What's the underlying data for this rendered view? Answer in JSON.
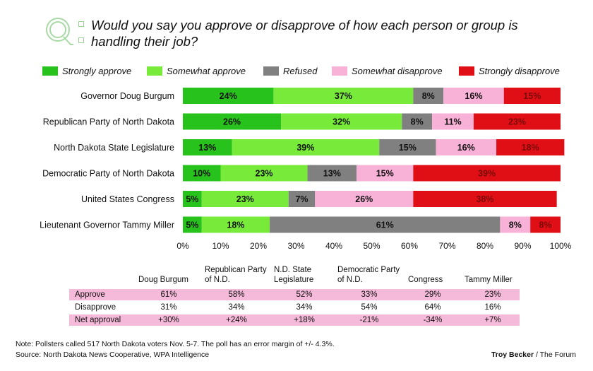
{
  "question": "Would you say you approve or disapprove of how each person or group is handling their job?",
  "chart_data": {
    "type": "bar",
    "orientation": "horizontal-stacked-100",
    "categories": [
      "Governor Doug Burgum",
      "Republican Party of North Dakota",
      "North Dakota State Legislature",
      "Democratic Party of North Dakota",
      "United States Congress",
      "Lieutenant Governor Tammy Miller"
    ],
    "series": [
      {
        "name": "Strongly approve",
        "color": "#27c21c",
        "label_color": "#111111",
        "values": [
          24,
          26,
          13,
          10,
          5,
          5
        ]
      },
      {
        "name": "Somewhat approve",
        "color": "#77ea3a",
        "label_color": "#111111",
        "values": [
          37,
          32,
          39,
          23,
          23,
          18
        ]
      },
      {
        "name": "Refused",
        "color": "#808080",
        "label_color": "#111111",
        "values": [
          8,
          8,
          15,
          13,
          7,
          61
        ]
      },
      {
        "name": "Somewhat disapprove",
        "color": "#f8b2d7",
        "label_color": "#111111",
        "values": [
          16,
          11,
          16,
          15,
          26,
          8
        ]
      },
      {
        "name": "Strongly disapprove",
        "color": "#e00f15",
        "label_color": "#7a0a0a",
        "values": [
          15,
          23,
          18,
          39,
          38,
          8
        ]
      }
    ],
    "xlim": [
      0,
      100
    ],
    "xticks": [
      "0%",
      "10%",
      "20%",
      "30%",
      "40%",
      "50%",
      "60%",
      "70%",
      "80%",
      "90%",
      "100%"
    ]
  },
  "table": {
    "headers": [
      "Doug Burgum",
      "Republican Party of N.D.",
      "N.D. State Legislature",
      "Democratic Party of N.D.",
      "Congress",
      "Tammy Miller"
    ],
    "rows": [
      {
        "label": "Approve",
        "values": [
          "61%",
          "58%",
          "52%",
          "33%",
          "29%",
          "23%"
        ]
      },
      {
        "label": "Disapprove",
        "values": [
          "31%",
          "34%",
          "34%",
          "54%",
          "64%",
          "16%"
        ]
      },
      {
        "label": "Net approval",
        "values": [
          "+30%",
          "+24%",
          "+18%",
          "-21%",
          "-34%",
          "+7%"
        ]
      }
    ]
  },
  "note": "Note: Pollsters called 517 North Dakota voters Nov. 5-7. The poll has an error margin of +/- 4.3%.",
  "source": "Source: North Dakota News Cooperative, WPA Intelligence",
  "credit_name": "Troy Becker",
  "credit_org": " / The Forum"
}
